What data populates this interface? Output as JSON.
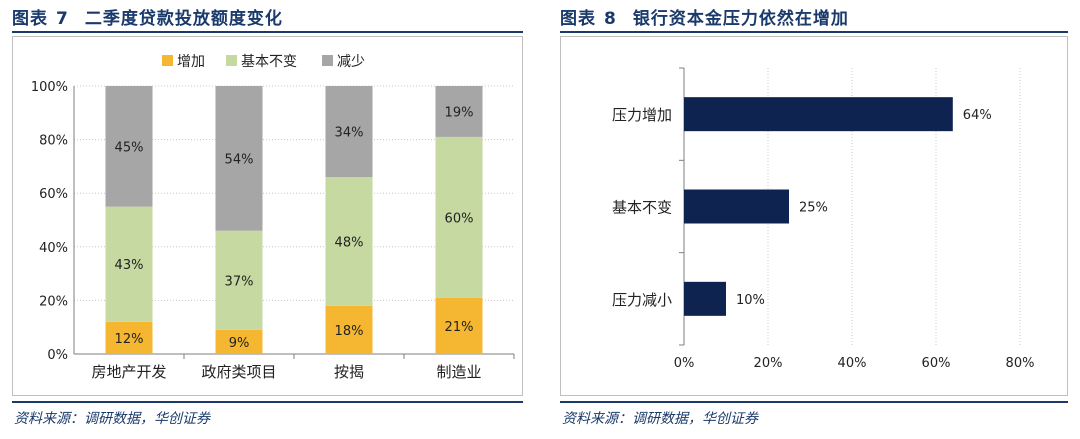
{
  "colors": {
    "title_blue": "#1a3a6b",
    "increase": "#f5b731",
    "unchanged": "#c5d9a1",
    "decrease": "#a6a6a6",
    "bar_navy": "#0f2350"
  },
  "left": {
    "figure_label": "图表",
    "figure_number": "7",
    "title": "二季度贷款投放额度变化",
    "source": "资料来源：调研数据，华创证券"
  },
  "right": {
    "figure_label": "图表",
    "figure_number": "8",
    "title": "银行资本金压力依然在增加",
    "source": "资料来源：调研数据，华创证券"
  },
  "chart_data": [
    {
      "type": "bar",
      "stacked": true,
      "orientation": "vertical",
      "categories": [
        "房地产开发",
        "政府类项目",
        "按揭",
        "制造业"
      ],
      "series": [
        {
          "name": "增加",
          "values": [
            12,
            9,
            18,
            21
          ],
          "labels": [
            "12%",
            "9%",
            "18%",
            "21%"
          ],
          "color": "#f5b731"
        },
        {
          "name": "基本不变",
          "values": [
            43,
            37,
            48,
            60
          ],
          "labels": [
            "43%",
            "37%",
            "48%",
            "60%"
          ],
          "color": "#c5d9a1"
        },
        {
          "name": "减少",
          "values": [
            45,
            54,
            34,
            19
          ],
          "labels": [
            "45%",
            "54%",
            "34%",
            "19%"
          ],
          "color": "#a6a6a6"
        }
      ],
      "ylim": [
        0,
        100
      ],
      "yticks": [
        0,
        20,
        40,
        60,
        80,
        100
      ],
      "ytick_labels": [
        "0%",
        "20%",
        "40%",
        "60%",
        "80%",
        "100%"
      ],
      "legend_position": "top",
      "grid": true
    },
    {
      "type": "bar",
      "orientation": "horizontal",
      "categories": [
        "压力增加",
        "基本不变",
        "压力减小"
      ],
      "values": [
        64,
        25,
        10
      ],
      "value_labels": [
        "64%",
        "25%",
        "10%"
      ],
      "color": "#0f2350",
      "xlim": [
        0,
        80
      ],
      "xticks": [
        0,
        20,
        40,
        60,
        80
      ],
      "xtick_labels": [
        "0%",
        "20%",
        "40%",
        "60%",
        "80%"
      ],
      "grid": true
    }
  ]
}
